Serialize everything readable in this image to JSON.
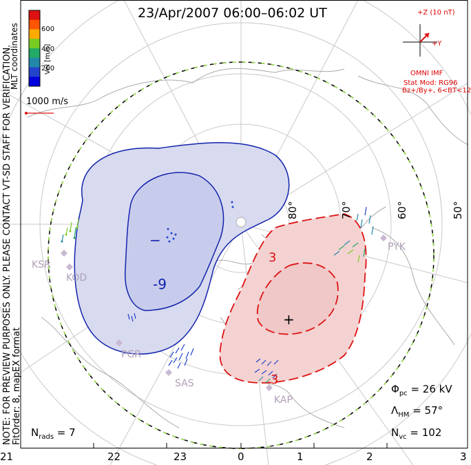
{
  "title": "23/Apr/2007 06:00–06:02 UT",
  "side_notes": [
    "NOTE: FOR PREVIEW PURPOSES ONLY. PLEASE CONTACT VT-SD STAFF FOR VERIFICATION.",
    "FitOrder: 8, mapEX format"
  ],
  "mlt_coordinates": "MLT coordinates",
  "colorbar": {
    "label": "Vel [m/s]",
    "ticks": [
      "600",
      "400",
      "200"
    ],
    "colors": [
      "#dd1111",
      "#ff5500",
      "#ffaa00",
      "#77cc22",
      "#22aa66",
      "#2288aa",
      "#2244cc",
      "#0000dd"
    ]
  },
  "reference_vector": "1000 m/s",
  "imf": {
    "z_label": "+Z (10 nT)",
    "y_label": "+Y",
    "source": "OMNI IMF",
    "model": "Stat Mod: RG96",
    "condition": "Bz+/By+, 6<BT<12"
  },
  "latitude_labels": [
    "80°",
    "70°",
    "60°",
    "50°"
  ],
  "contour_labels": {
    "negative_center": "−",
    "negative": "-9",
    "positive": "3",
    "positive_bottom": "3",
    "positive_center": "+"
  },
  "stations": [
    "KSR",
    "KOD",
    "PGR",
    "SAS",
    "KAP",
    "PYK"
  ],
  "stats": {
    "phi_pc": "26 kV",
    "lambda_hm": "57°",
    "n_vc": "102",
    "n_rads": "7"
  },
  "mlt_axis": [
    "21",
    "22",
    "23",
    "0",
    "1",
    "2",
    "3"
  ],
  "colors": {
    "negative_contour": "#1122aa",
    "positive_contour": "#dd1111",
    "negative_fill": "#d8daf0",
    "positive_fill": "#f4d2d2",
    "grid": "#c8c8c8",
    "coast": "#aaaaaa",
    "station": "#c8b8d0"
  }
}
